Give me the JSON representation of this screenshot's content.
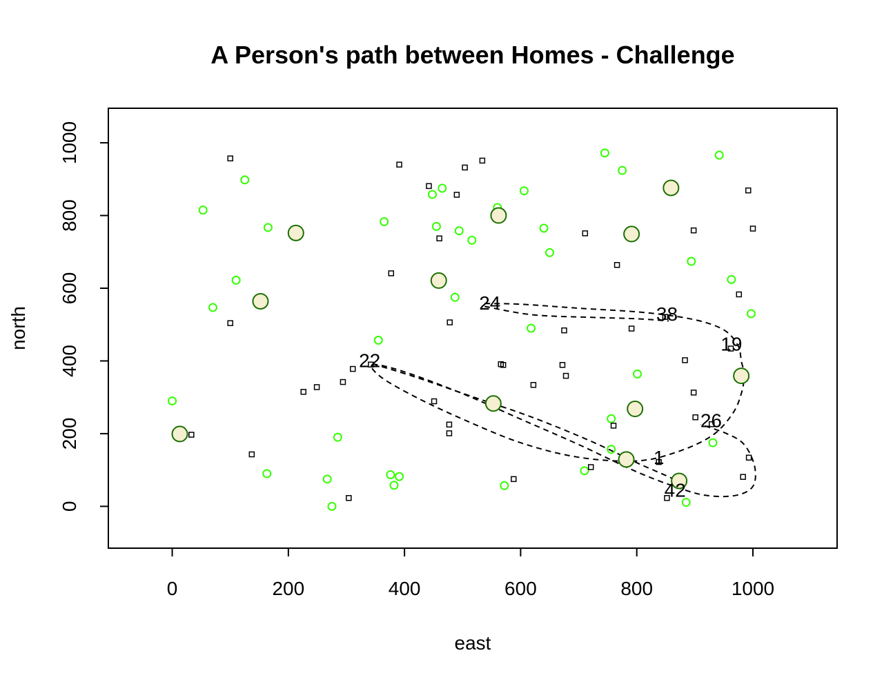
{
  "chart_data": {
    "type": "scatter",
    "title": "A Person's path between Homes - Challenge",
    "xlabel": "east",
    "ylabel": "north",
    "xlim": [
      -110,
      1145
    ],
    "ylim": [
      -115,
      1095
    ],
    "xticks": [
      0,
      200,
      400,
      600,
      800,
      1000
    ],
    "yticks": [
      0,
      200,
      400,
      600,
      800,
      1000
    ],
    "grid": false,
    "colors": {
      "small_circle": "#33ff00",
      "large_circle_stroke": "#1a6e00",
      "large_circle_fill": "#f5f0d2",
      "square": "#000000",
      "path": "#000000"
    },
    "series": [
      {
        "marker": "small-circle",
        "points": [
          [
            0,
            290
          ],
          [
            53,
            815
          ],
          [
            70,
            547
          ],
          [
            110,
            622
          ],
          [
            125,
            898
          ],
          [
            165,
            767
          ],
          [
            163,
            90
          ],
          [
            267,
            75
          ],
          [
            275,
            0
          ],
          [
            285,
            190
          ],
          [
            355,
            457
          ],
          [
            365,
            783
          ],
          [
            376,
            87
          ],
          [
            382,
            58
          ],
          [
            391,
            82
          ],
          [
            448,
            858
          ],
          [
            455,
            770
          ],
          [
            465,
            875
          ],
          [
            487,
            575
          ],
          [
            494,
            758
          ],
          [
            516,
            732
          ],
          [
            560,
            822
          ],
          [
            572,
            57
          ],
          [
            606,
            868
          ],
          [
            618,
            490
          ],
          [
            640,
            765
          ],
          [
            650,
            698
          ],
          [
            710,
            98
          ],
          [
            745,
            972
          ],
          [
            756,
            241
          ],
          [
            756,
            157
          ],
          [
            775,
            924
          ],
          [
            801,
            364
          ],
          [
            894,
            674
          ],
          [
            931,
            175
          ],
          [
            942,
            966
          ],
          [
            963,
            624
          ],
          [
            885,
            11
          ],
          [
            997,
            530
          ]
        ]
      },
      {
        "marker": "large-circle",
        "points": [
          [
            13,
            199
          ],
          [
            213,
            752
          ],
          [
            152,
            564
          ],
          [
            459,
            621
          ],
          [
            562,
            800
          ],
          [
            553,
            283
          ],
          [
            791,
            749
          ],
          [
            797,
            268
          ],
          [
            782,
            129
          ],
          [
            859,
            876
          ],
          [
            873,
            70
          ],
          [
            980,
            359
          ]
        ]
      },
      {
        "marker": "square",
        "points": [
          [
            33,
            197
          ],
          [
            100,
            957
          ],
          [
            100,
            504
          ],
          [
            137,
            143
          ],
          [
            226,
            315
          ],
          [
            249,
            328
          ],
          [
            294,
            342
          ],
          [
            304,
            23
          ],
          [
            311,
            378
          ],
          [
            342,
            390
          ],
          [
            377,
            641
          ],
          [
            391,
            940
          ],
          [
            442,
            881
          ],
          [
            451,
            289
          ],
          [
            460,
            737
          ],
          [
            477,
            225
          ],
          [
            477,
            201
          ],
          [
            478,
            506
          ],
          [
            490,
            857
          ],
          [
            504,
            932
          ],
          [
            534,
            951
          ],
          [
            566,
            391
          ],
          [
            570,
            389
          ],
          [
            588,
            75
          ],
          [
            622,
            334
          ],
          [
            672,
            389
          ],
          [
            675,
            484
          ],
          [
            678,
            359
          ],
          [
            711,
            751
          ],
          [
            721,
            108
          ],
          [
            760,
            222
          ],
          [
            766,
            664
          ],
          [
            791,
            489
          ],
          [
            838,
            122
          ],
          [
            849,
            521
          ],
          [
            852,
            23
          ],
          [
            883,
            402
          ],
          [
            898,
            759
          ],
          [
            898,
            313
          ],
          [
            901,
            245
          ],
          [
            929,
            226
          ],
          [
            962,
            434
          ],
          [
            976,
            583
          ],
          [
            983,
            81
          ],
          [
            992,
            869
          ],
          [
            993,
            134
          ],
          [
            1000,
            764
          ]
        ]
      }
    ],
    "path_labels": [
      {
        "text": "24",
        "x": 547,
        "y": 560
      },
      {
        "text": "38",
        "x": 852,
        "y": 530
      },
      {
        "text": "19",
        "x": 963,
        "y": 447
      },
      {
        "text": "22",
        "x": 340,
        "y": 402
      },
      {
        "text": "26",
        "x": 928,
        "y": 237
      },
      {
        "text": "1",
        "x": 838,
        "y": 135
      },
      {
        "text": "42",
        "x": 866,
        "y": 45
      }
    ],
    "path": [
      [
        538,
        558
      ],
      [
        600,
        556
      ],
      [
        700,
        545
      ],
      [
        800,
        535
      ],
      [
        870,
        522
      ],
      [
        920,
        505
      ],
      [
        955,
        480
      ],
      [
        975,
        440
      ],
      [
        980,
        400
      ],
      [
        985,
        360
      ],
      [
        980,
        310
      ],
      [
        965,
        255
      ],
      [
        930,
        195
      ],
      [
        870,
        150
      ],
      [
        800,
        125
      ],
      [
        700,
        135
      ],
      [
        600,
        175
      ],
      [
        500,
        240
      ],
      [
        420,
        300
      ],
      [
        360,
        355
      ],
      [
        345,
        390
      ],
      [
        400,
        370
      ],
      [
        500,
        310
      ],
      [
        600,
        240
      ],
      [
        700,
        170
      ],
      [
        800,
        95
      ],
      [
        870,
        52
      ],
      [
        920,
        30
      ],
      [
        970,
        30
      ],
      [
        1000,
        55
      ],
      [
        1003,
        110
      ],
      [
        985,
        170
      ],
      [
        955,
        200
      ],
      [
        910,
        225
      ]
    ],
    "path_secondary": [
      [
        538,
        550
      ],
      [
        620,
        527
      ],
      [
        720,
        520
      ],
      [
        800,
        516
      ],
      [
        855,
        510
      ]
    ],
    "path_tertiary": [
      [
        345,
        392
      ],
      [
        420,
        355
      ],
      [
        520,
        300
      ],
      [
        620,
        245
      ],
      [
        720,
        180
      ],
      [
        800,
        120
      ],
      [
        850,
        85
      ],
      [
        870,
        70
      ]
    ]
  }
}
